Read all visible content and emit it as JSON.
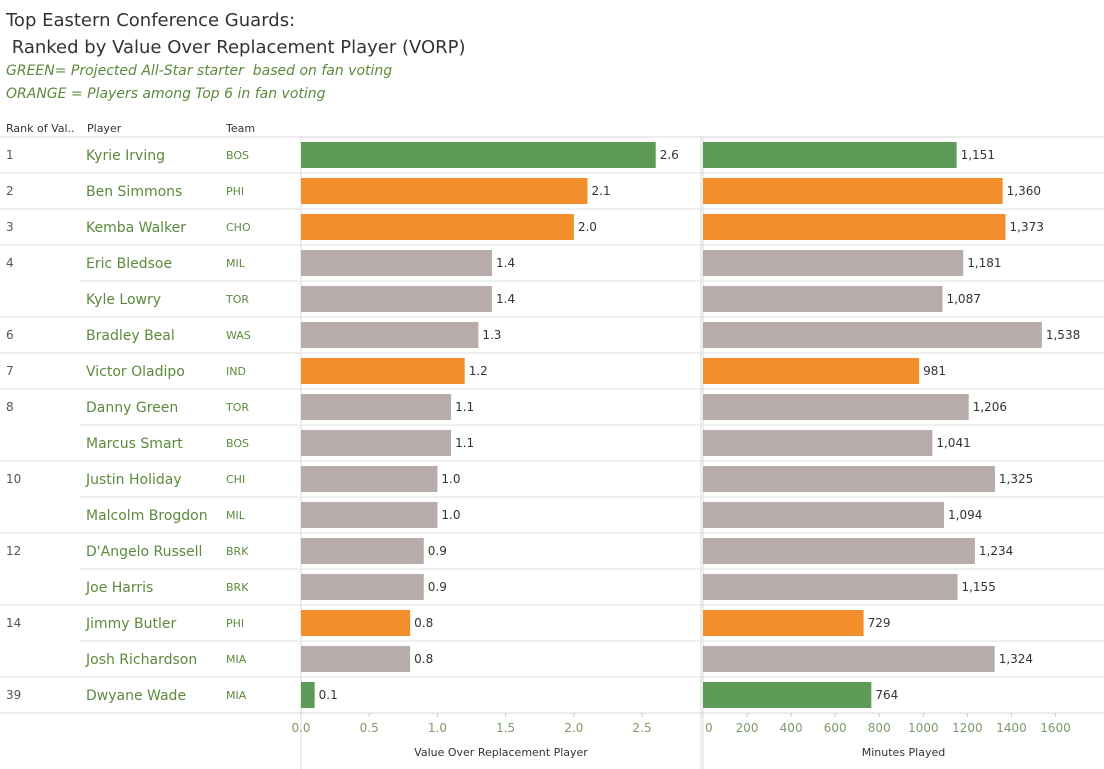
{
  "header": {
    "title_line1": "Top Eastern Conference Guards:",
    "title_line2": " Ranked by Value Over Replacement Player (VORP)",
    "subtitle_line1": "GREEN= Projected All-Star starter  based on fan voting",
    "subtitle_line2": "ORANGE = Players among Top 6 in fan voting"
  },
  "columns": {
    "rank": "Rank of Val..",
    "player": "Player",
    "team": "Team"
  },
  "colors": {
    "green": "#5e9a58",
    "orange": "#f28e2b",
    "gray": "#b7aca9",
    "name_text": "#5b8a3c"
  },
  "chart_data": {
    "type": "bar",
    "orientation": "horizontal",
    "rows": [
      {
        "rank": "1",
        "player": "Kyrie Irving",
        "team": "BOS",
        "vorp": 2.6,
        "minutes": 1151,
        "vorp_label": "2.6",
        "minutes_label": "1,151",
        "color": "green"
      },
      {
        "rank": "2",
        "player": "Ben Simmons",
        "team": "PHI",
        "vorp": 2.1,
        "minutes": 1360,
        "vorp_label": "2.1",
        "minutes_label": "1,360",
        "color": "orange"
      },
      {
        "rank": "3",
        "player": "Kemba Walker",
        "team": "CHO",
        "vorp": 2.0,
        "minutes": 1373,
        "vorp_label": "2.0",
        "minutes_label": "1,373",
        "color": "orange"
      },
      {
        "rank": "4",
        "player": "Eric Bledsoe",
        "team": "MIL",
        "vorp": 1.4,
        "minutes": 1181,
        "vorp_label": "1.4",
        "minutes_label": "1,181",
        "color": "gray"
      },
      {
        "rank": "",
        "player": "Kyle Lowry",
        "team": "TOR",
        "vorp": 1.4,
        "minutes": 1087,
        "vorp_label": "1.4",
        "minutes_label": "1,087",
        "color": "gray"
      },
      {
        "rank": "6",
        "player": "Bradley Beal",
        "team": "WAS",
        "vorp": 1.3,
        "minutes": 1538,
        "vorp_label": "1.3",
        "minutes_label": "1,538",
        "color": "gray"
      },
      {
        "rank": "7",
        "player": "Victor Oladipo",
        "team": "IND",
        "vorp": 1.2,
        "minutes": 981,
        "vorp_label": "1.2",
        "minutes_label": "981",
        "color": "orange"
      },
      {
        "rank": "8",
        "player": "Danny Green",
        "team": "TOR",
        "vorp": 1.1,
        "minutes": 1206,
        "vorp_label": "1.1",
        "minutes_label": "1,206",
        "color": "gray"
      },
      {
        "rank": "",
        "player": "Marcus Smart",
        "team": "BOS",
        "vorp": 1.1,
        "minutes": 1041,
        "vorp_label": "1.1",
        "minutes_label": "1,041",
        "color": "gray"
      },
      {
        "rank": "10",
        "player": "Justin Holiday",
        "team": "CHI",
        "vorp": 1.0,
        "minutes": 1325,
        "vorp_label": "1.0",
        "minutes_label": "1,325",
        "color": "gray"
      },
      {
        "rank": "",
        "player": "Malcolm Brogdon",
        "team": "MIL",
        "vorp": 1.0,
        "minutes": 1094,
        "vorp_label": "1.0",
        "minutes_label": "1,094",
        "color": "gray"
      },
      {
        "rank": "12",
        "player": "D'Angelo Russell",
        "team": "BRK",
        "vorp": 0.9,
        "minutes": 1234,
        "vorp_label": "0.9",
        "minutes_label": "1,234",
        "color": "gray"
      },
      {
        "rank": "",
        "player": "Joe Harris",
        "team": "BRK",
        "vorp": 0.9,
        "minutes": 1155,
        "vorp_label": "0.9",
        "minutes_label": "1,155",
        "color": "gray"
      },
      {
        "rank": "14",
        "player": "Jimmy Butler",
        "team": "PHI",
        "vorp": 0.8,
        "minutes": 729,
        "vorp_label": "0.8",
        "minutes_label": "729",
        "color": "orange"
      },
      {
        "rank": "",
        "player": "Josh Richardson",
        "team": "MIA",
        "vorp": 0.8,
        "minutes": 1324,
        "vorp_label": "0.8",
        "minutes_label": "1,324",
        "color": "gray"
      },
      {
        "rank": "39",
        "player": "Dwyane Wade",
        "team": "MIA",
        "vorp": 0.1,
        "minutes": 764,
        "vorp_label": "0.1",
        "minutes_label": "764",
        "color": "green"
      }
    ],
    "group_ends": [
      0,
      1,
      2,
      4,
      5,
      6,
      8,
      10,
      12,
      14,
      15
    ],
    "vorp_axis": {
      "label": "Value Over Replacement Player",
      "range": [
        0,
        2.8
      ],
      "ticks": [
        0,
        0.5,
        1.0,
        1.5,
        2.0,
        2.5
      ],
      "tick_labels": [
        "0.0",
        "0.5",
        "1.0",
        "1.5",
        "2.0",
        "2.5"
      ]
    },
    "minutes_axis": {
      "label": "Minutes Played",
      "range": [
        0,
        1820
      ],
      "ticks": [
        0,
        200,
        400,
        600,
        800,
        1000,
        1200,
        1400,
        1600
      ],
      "tick_labels": [
        "0",
        "200",
        "400",
        "600",
        "800",
        "1000",
        "1200",
        "1400",
        "1600"
      ]
    },
    "grid": false
  }
}
